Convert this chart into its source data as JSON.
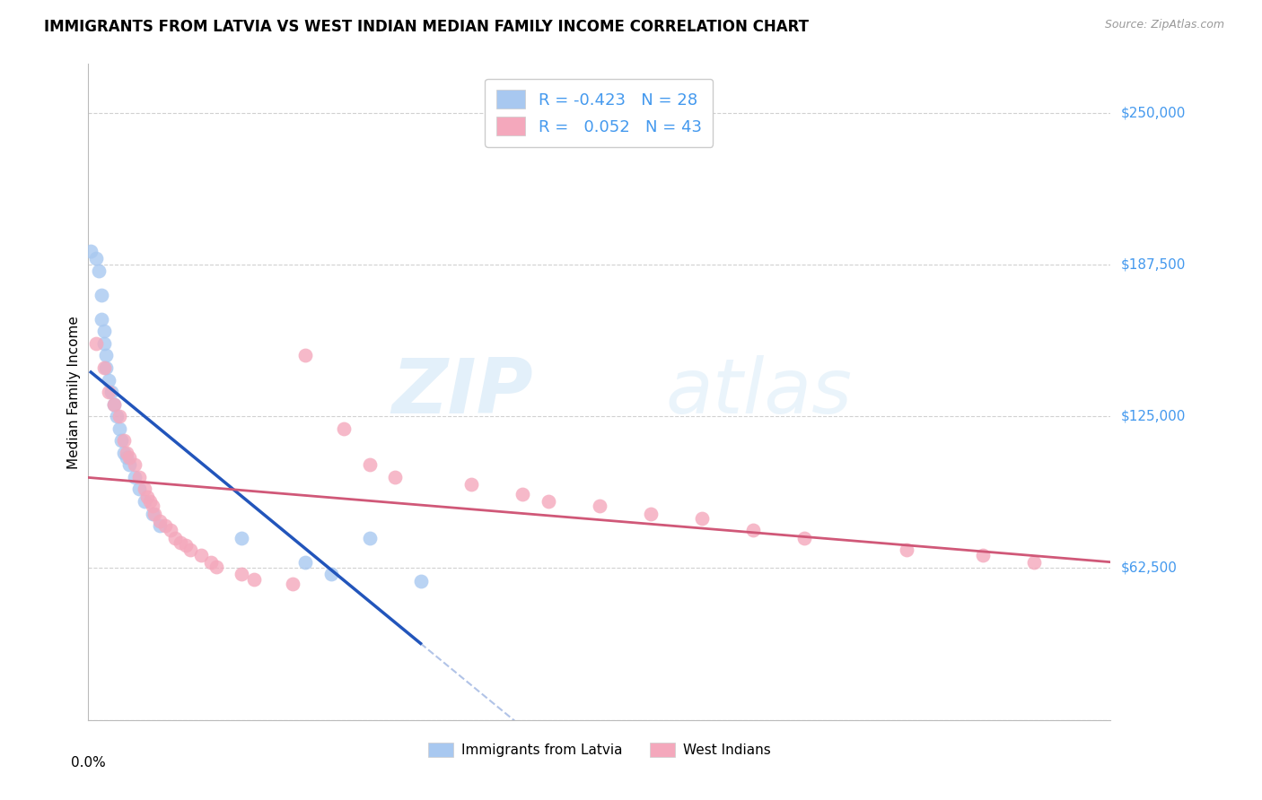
{
  "title": "IMMIGRANTS FROM LATVIA VS WEST INDIAN MEDIAN FAMILY INCOME CORRELATION CHART",
  "source": "Source: ZipAtlas.com",
  "ylabel": "Median Family Income",
  "xlim": [
    0.0,
    0.4
  ],
  "ylim": [
    0,
    270000
  ],
  "y_ticks": [
    0,
    62500,
    125000,
    187500,
    250000
  ],
  "y_tick_labels": [
    "",
    "$62,500",
    "$125,000",
    "$187,500",
    "$250,000"
  ],
  "legend_blue_r": "-0.423",
  "legend_blue_n": "28",
  "legend_pink_r": " 0.052",
  "legend_pink_n": "43",
  "legend_blue_label": "Immigrants from Latvia",
  "legend_pink_label": "West Indians",
  "blue_color": "#a8c8f0",
  "pink_color": "#f4a8bc",
  "blue_line_color": "#2255bb",
  "pink_line_color": "#d05878",
  "watermark_zip": "ZIP",
  "watermark_atlas": "atlas",
  "background_color": "#ffffff",
  "blue_scatter_x": [
    0.001,
    0.003,
    0.004,
    0.005,
    0.005,
    0.006,
    0.006,
    0.007,
    0.007,
    0.008,
    0.009,
    0.01,
    0.011,
    0.012,
    0.013,
    0.014,
    0.015,
    0.016,
    0.018,
    0.02,
    0.022,
    0.025,
    0.028,
    0.06,
    0.085,
    0.095,
    0.11,
    0.13
  ],
  "blue_scatter_y": [
    193000,
    190000,
    185000,
    175000,
    165000,
    160000,
    155000,
    150000,
    145000,
    140000,
    135000,
    130000,
    125000,
    120000,
    115000,
    110000,
    108000,
    105000,
    100000,
    95000,
    90000,
    85000,
    80000,
    75000,
    65000,
    60000,
    75000,
    57000
  ],
  "pink_scatter_x": [
    0.003,
    0.006,
    0.008,
    0.01,
    0.012,
    0.014,
    0.015,
    0.016,
    0.018,
    0.02,
    0.022,
    0.023,
    0.024,
    0.025,
    0.026,
    0.028,
    0.03,
    0.032,
    0.034,
    0.036,
    0.038,
    0.04,
    0.044,
    0.048,
    0.05,
    0.06,
    0.065,
    0.08,
    0.085,
    0.1,
    0.11,
    0.12,
    0.15,
    0.17,
    0.18,
    0.2,
    0.22,
    0.24,
    0.26,
    0.28,
    0.32,
    0.35,
    0.37
  ],
  "pink_scatter_y": [
    155000,
    145000,
    135000,
    130000,
    125000,
    115000,
    110000,
    108000,
    105000,
    100000,
    95000,
    92000,
    90000,
    88000,
    85000,
    82000,
    80000,
    78000,
    75000,
    73000,
    72000,
    70000,
    68000,
    65000,
    63000,
    60000,
    58000,
    56000,
    150000,
    120000,
    105000,
    100000,
    97000,
    93000,
    90000,
    88000,
    85000,
    83000,
    78000,
    75000,
    70000,
    68000,
    65000
  ]
}
